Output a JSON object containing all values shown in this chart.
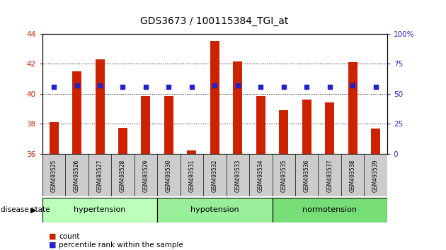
{
  "title": "GDS3673 / 100115384_TGI_at",
  "samples": [
    "GSM493525",
    "GSM493526",
    "GSM493527",
    "GSM493528",
    "GSM493529",
    "GSM493530",
    "GSM493531",
    "GSM493532",
    "GSM493533",
    "GSM493534",
    "GSM493535",
    "GSM493536",
    "GSM493537",
    "GSM493538",
    "GSM493539"
  ],
  "bar_values": [
    38.1,
    41.5,
    42.3,
    37.75,
    39.85,
    39.85,
    36.2,
    43.5,
    42.15,
    39.85,
    38.9,
    39.6,
    39.4,
    42.1,
    37.7
  ],
  "percentile_values": [
    56,
    57,
    57,
    56,
    56,
    56,
    56,
    57,
    57,
    56,
    56,
    56,
    56,
    57,
    56
  ],
  "ylim_left": [
    36,
    44
  ],
  "ylim_right": [
    0,
    100
  ],
  "yticks_left": [
    36,
    38,
    40,
    42,
    44
  ],
  "yticks_right": [
    0,
    25,
    50,
    75,
    100
  ],
  "ytick_labels_right": [
    "0",
    "25",
    "50",
    "75",
    "100%"
  ],
  "bar_color": "#cc2200",
  "dot_color": "#2222cc",
  "bar_width": 0.4,
  "groups": [
    {
      "label": "hypertension",
      "start": 0,
      "end": 4
    },
    {
      "label": "hypotension",
      "start": 5,
      "end": 9
    },
    {
      "label": "normotension",
      "start": 10,
      "end": 14
    }
  ],
  "group_colors": [
    "#bbffbb",
    "#99ee99",
    "#77dd77"
  ],
  "disease_state_label": "disease state",
  "legend_count_color": "#cc2200",
  "legend_pct_color": "#2222cc",
  "tick_bg_color": "#cccccc"
}
